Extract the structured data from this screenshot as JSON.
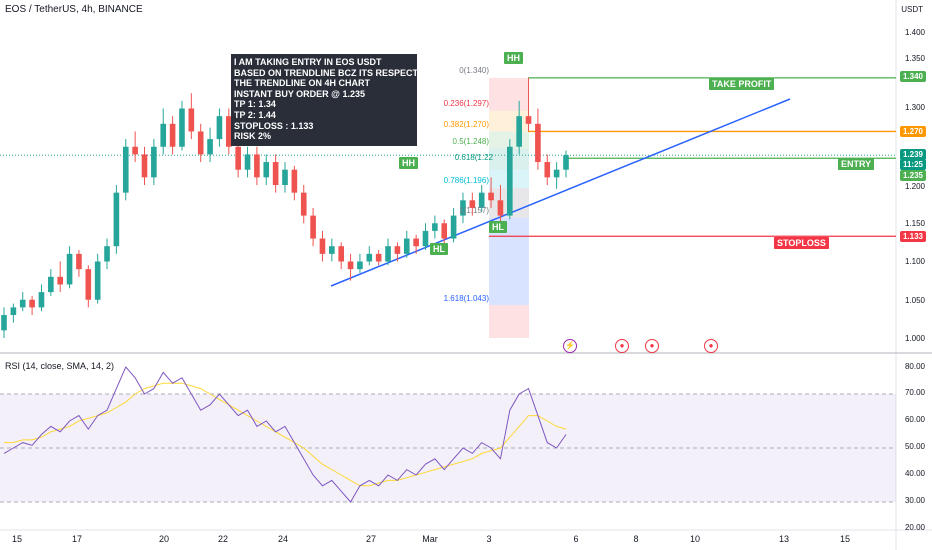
{
  "header": {
    "title": "EOS / TetherUS, 4h, BINANCE",
    "unit": "USDT"
  },
  "note": {
    "lines": [
      "I AM TAKING ENTRY IN EOS USDT",
      "BASED ON TRENDLINE BCZ ITS RESPECTS",
      "THE TRENDLINE ON 4H CHART",
      "INSTANT BUY ORDER @ 1.235",
      "TP 1: 1.34",
      "TP 2: 1.44",
      "STOPLOSS : 1.133",
      "RISK 2%"
    ]
  },
  "labels": {
    "hh1": "HH",
    "hh2": "HH",
    "hl1": "HL",
    "hl2": "HL",
    "take_profit": "TAKE PROFIT",
    "entry": "ENTRY",
    "stoploss": "STOPLOSS"
  },
  "fib": {
    "f0": "0(1.340)",
    "f236": "0.236(1.297)",
    "f382": "0.382(1.270)",
    "f5": "0.5(1.248)",
    "f618": "0.618(1.22",
    "f786": "0.786(1.196)",
    "f1": "1(1.157)",
    "f1618": "1.618(1.043)"
  },
  "price_axis": {
    "ticks": [
      "1.400",
      "1.350",
      "1.300",
      "1.250",
      "1.200",
      "1.150",
      "1.100",
      "1.050",
      "1.000"
    ],
    "badges": {
      "tp": "1.340",
      "l270": "1.270",
      "cur": "1.239",
      "countdown": "11:25",
      "entry": "1.235",
      "sl": "1.133"
    }
  },
  "rsi": {
    "title": "RSI (14, close, SMA, 14, 2)",
    "ticks": [
      "80.00",
      "70.00",
      "60.00",
      "50.00",
      "40.00",
      "30.00",
      "20.00"
    ]
  },
  "time_axis": [
    "15",
    "17",
    "20",
    "22",
    "24",
    "27",
    "Mar",
    "3",
    "6",
    "8",
    "10",
    "13",
    "15"
  ],
  "colors": {
    "bull": "#26a69a",
    "bear": "#ef5350",
    "trend": "#2962ff",
    "tp": "#4caf50",
    "orange": "#ff9800",
    "sl": "#f23645",
    "rsi": "#7e57c2",
    "rsi_ma": "#fdd835"
  },
  "chart_data": {
    "type": "candlestick",
    "ylim": [
      0.97,
      1.44
    ],
    "candles": [
      [
        1.01,
        1.04,
        1.0,
        1.03
      ],
      [
        1.03,
        1.045,
        1.02,
        1.04
      ],
      [
        1.04,
        1.06,
        1.035,
        1.05
      ],
      [
        1.05,
        1.055,
        1.03,
        1.04
      ],
      [
        1.04,
        1.07,
        1.035,
        1.06
      ],
      [
        1.06,
        1.09,
        1.055,
        1.08
      ],
      [
        1.08,
        1.1,
        1.06,
        1.07
      ],
      [
        1.07,
        1.12,
        1.065,
        1.11
      ],
      [
        1.11,
        1.115,
        1.08,
        1.09
      ],
      [
        1.09,
        1.095,
        1.04,
        1.05
      ],
      [
        1.05,
        1.11,
        1.045,
        1.1
      ],
      [
        1.1,
        1.13,
        1.09,
        1.12
      ],
      [
        1.12,
        1.2,
        1.11,
        1.19
      ],
      [
        1.19,
        1.26,
        1.18,
        1.25
      ],
      [
        1.25,
        1.27,
        1.23,
        1.24
      ],
      [
        1.24,
        1.25,
        1.2,
        1.21
      ],
      [
        1.21,
        1.26,
        1.2,
        1.25
      ],
      [
        1.25,
        1.3,
        1.24,
        1.28
      ],
      [
        1.28,
        1.29,
        1.24,
        1.25
      ],
      [
        1.25,
        1.31,
        1.245,
        1.3
      ],
      [
        1.3,
        1.32,
        1.26,
        1.27
      ],
      [
        1.27,
        1.28,
        1.23,
        1.24
      ],
      [
        1.24,
        1.275,
        1.23,
        1.26
      ],
      [
        1.26,
        1.3,
        1.25,
        1.29
      ],
      [
        1.29,
        1.3,
        1.24,
        1.25
      ],
      [
        1.25,
        1.26,
        1.21,
        1.22
      ],
      [
        1.22,
        1.25,
        1.21,
        1.24
      ],
      [
        1.24,
        1.25,
        1.2,
        1.21
      ],
      [
        1.21,
        1.24,
        1.2,
        1.23
      ],
      [
        1.23,
        1.24,
        1.19,
        1.2
      ],
      [
        1.2,
        1.23,
        1.19,
        1.22
      ],
      [
        1.22,
        1.225,
        1.18,
        1.19
      ],
      [
        1.19,
        1.2,
        1.15,
        1.16
      ],
      [
        1.16,
        1.17,
        1.12,
        1.13
      ],
      [
        1.13,
        1.14,
        1.1,
        1.11
      ],
      [
        1.11,
        1.13,
        1.1,
        1.12
      ],
      [
        1.12,
        1.125,
        1.09,
        1.1
      ],
      [
        1.1,
        1.11,
        1.075,
        1.09
      ],
      [
        1.09,
        1.11,
        1.085,
        1.1
      ],
      [
        1.1,
        1.12,
        1.095,
        1.11
      ],
      [
        1.11,
        1.115,
        1.095,
        1.1
      ],
      [
        1.1,
        1.13,
        1.095,
        1.12
      ],
      [
        1.12,
        1.125,
        1.1,
        1.11
      ],
      [
        1.11,
        1.14,
        1.105,
        1.13
      ],
      [
        1.13,
        1.135,
        1.11,
        1.12
      ],
      [
        1.12,
        1.15,
        1.115,
        1.14
      ],
      [
        1.14,
        1.16,
        1.13,
        1.15
      ],
      [
        1.15,
        1.155,
        1.12,
        1.13
      ],
      [
        1.13,
        1.17,
        1.125,
        1.16
      ],
      [
        1.16,
        1.19,
        1.15,
        1.18
      ],
      [
        1.18,
        1.19,
        1.16,
        1.17
      ],
      [
        1.17,
        1.2,
        1.165,
        1.19
      ],
      [
        1.19,
        1.21,
        1.17,
        1.18
      ],
      [
        1.18,
        1.2,
        1.15,
        1.16
      ],
      [
        1.16,
        1.26,
        1.155,
        1.25
      ],
      [
        1.25,
        1.31,
        1.24,
        1.29
      ],
      [
        1.29,
        1.34,
        1.27,
        1.28
      ],
      [
        1.28,
        1.3,
        1.22,
        1.23
      ],
      [
        1.23,
        1.24,
        1.2,
        1.21
      ],
      [
        1.21,
        1.23,
        1.195,
        1.22
      ],
      [
        1.22,
        1.245,
        1.21,
        1.239
      ]
    ],
    "price_levels": {
      "take_profit": 1.34,
      "level_270": 1.27,
      "entry": 1.235,
      "stoploss": 1.133
    },
    "rsi": [
      48,
      50,
      52,
      51,
      55,
      58,
      56,
      60,
      62,
      57,
      62,
      64,
      72,
      80,
      76,
      70,
      72,
      78,
      74,
      76,
      70,
      64,
      66,
      70,
      66,
      62,
      64,
      58,
      60,
      56,
      58,
      52,
      46,
      40,
      36,
      38,
      34,
      30,
      36,
      38,
      36,
      40,
      38,
      42,
      40,
      44,
      46,
      42,
      46,
      50,
      48,
      52,
      50,
      46,
      64,
      70,
      72,
      62,
      52,
      50,
      55
    ],
    "rsi_ma": [
      52,
      52,
      53,
      53,
      54,
      56,
      57,
      58,
      60,
      61,
      62,
      63,
      65,
      67,
      70,
      72,
      73,
      74,
      74,
      74,
      73,
      72,
      70,
      68,
      66,
      64,
      62,
      60,
      58,
      56,
      54,
      52,
      50,
      47,
      44,
      42,
      40,
      38,
      36,
      36,
      37,
      38,
      38,
      39,
      40,
      41,
      42,
      43,
      44,
      45,
      46,
      48,
      49,
      50,
      54,
      58,
      62,
      62,
      60,
      58,
      57
    ]
  }
}
